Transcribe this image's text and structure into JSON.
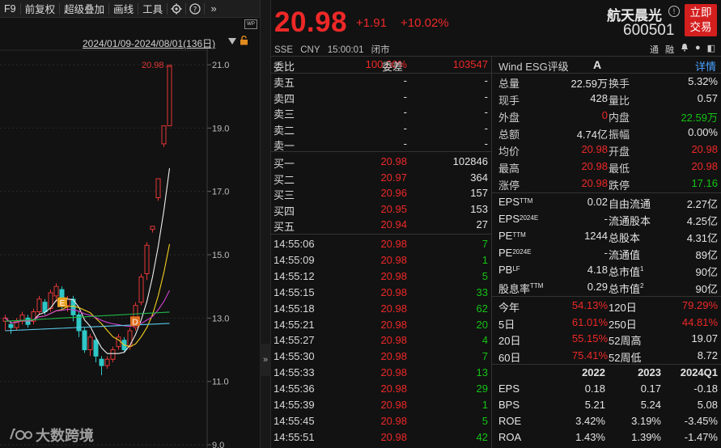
{
  "toolbar": {
    "items": [
      "F9",
      "前复权",
      "超级叠加",
      "画线",
      "工具"
    ]
  },
  "chart_panel": {
    "date_range": "2024/01/09-2024/08/01(136日)",
    "wp_badge": "WP",
    "price_marker": "20.98→",
    "y_ticks": [
      "21.0",
      "19.0",
      "17.0",
      "15.0",
      "13.0",
      "11.0",
      "9.0"
    ],
    "markers": [
      "E",
      "D"
    ],
    "watermark": "大数跨境"
  },
  "chart_data": {
    "type": "candlestick",
    "y_ticks": [
      21.0,
      19.0,
      17.0,
      15.0,
      13.0,
      11.0,
      9.0
    ],
    "ylim": [
      9.0,
      21.5
    ],
    "last_price_label": "20.98",
    "candles_tail_close": [
      12.0,
      12.3,
      13.2,
      14.1,
      15.2,
      15.8,
      17.2,
      19.07,
      20.98
    ]
  },
  "quote": {
    "price": "20.98",
    "change": "+1.91",
    "change_pct": "+10.02%",
    "exchange": "SSE",
    "currency": "CNY",
    "time": "15:00:01",
    "status": "闭市",
    "name": "航天晨光",
    "code": "600501",
    "trade_button_line1": "立即",
    "trade_button_line2": "交易",
    "mini_icons": [
      "通",
      "融",
      "🔔",
      "●",
      "◧"
    ]
  },
  "orderbook": {
    "weibi_label": "委比",
    "weibi_value": "100.00%",
    "weicha_label": "委差",
    "weicha_value": "103547",
    "asks": [
      {
        "label": "卖五",
        "price": "-",
        "vol": "-"
      },
      {
        "label": "卖四",
        "price": "-",
        "vol": "-"
      },
      {
        "label": "卖三",
        "price": "-",
        "vol": "-"
      },
      {
        "label": "卖二",
        "price": "-",
        "vol": "-"
      },
      {
        "label": "卖一",
        "price": "-",
        "vol": "-"
      }
    ],
    "bids": [
      {
        "label": "买一",
        "price": "20.98",
        "vol": "102846"
      },
      {
        "label": "买二",
        "price": "20.97",
        "vol": "364"
      },
      {
        "label": "买三",
        "price": "20.96",
        "vol": "157"
      },
      {
        "label": "买四",
        "price": "20.95",
        "vol": "153"
      },
      {
        "label": "买五",
        "price": "20.94",
        "vol": "27"
      }
    ],
    "ticks": [
      {
        "time": "14:55:06",
        "price": "20.98",
        "vol": "7"
      },
      {
        "time": "14:55:09",
        "price": "20.98",
        "vol": "1"
      },
      {
        "time": "14:55:12",
        "price": "20.98",
        "vol": "5"
      },
      {
        "time": "14:55:15",
        "price": "20.98",
        "vol": "33"
      },
      {
        "time": "14:55:18",
        "price": "20.98",
        "vol": "62"
      },
      {
        "time": "14:55:21",
        "price": "20.98",
        "vol": "20"
      },
      {
        "time": "14:55:27",
        "price": "20.98",
        "vol": "4"
      },
      {
        "time": "14:55:30",
        "price": "20.98",
        "vol": "7"
      },
      {
        "time": "14:55:33",
        "price": "20.98",
        "vol": "13"
      },
      {
        "time": "14:55:36",
        "price": "20.98",
        "vol": "29"
      },
      {
        "time": "14:55:39",
        "price": "20.98",
        "vol": "1"
      },
      {
        "time": "14:55:45",
        "price": "20.98",
        "vol": "5"
      },
      {
        "time": "14:55:51",
        "price": "20.98",
        "vol": "42"
      }
    ]
  },
  "stats": {
    "esg_label": "Wind ESG评级",
    "esg_value": "A",
    "detail_link": "详情",
    "rows1": [
      {
        "l1": "总量",
        "v1": "22.59万",
        "l2": "换手",
        "v2": "5.32%",
        "c1": "white",
        "c2": "white"
      },
      {
        "l1": "现手",
        "v1": "428",
        "l2": "量比",
        "v2": "0.57",
        "c1": "white",
        "c2": "white"
      },
      {
        "l1": "外盘",
        "v1": "0",
        "l2": "内盘",
        "v2": "22.59万",
        "c1": "red",
        "c2": "green"
      },
      {
        "l1": "总额",
        "v1": "4.74亿",
        "l2": "振幅",
        "v2": "0.00%",
        "c1": "white",
        "c2": "white"
      },
      {
        "l1": "均价",
        "v1": "20.98",
        "l2": "开盘",
        "v2": "20.98",
        "c1": "red",
        "c2": "red"
      },
      {
        "l1": "最高",
        "v1": "20.98",
        "l2": "最低",
        "v2": "20.98",
        "c1": "red",
        "c2": "red"
      },
      {
        "l1": "涨停",
        "v1": "20.98",
        "l2": "跌停",
        "v2": "17.16",
        "c1": "red",
        "c2": "green"
      }
    ],
    "rows2": [
      {
        "l1": "EPS",
        "s1": "TTM",
        "v1": "0.02",
        "l2": "自由流通",
        "s2": "",
        "v2": "2.27亿"
      },
      {
        "l1": "EPS",
        "s1": "2024E",
        "v1": "-",
        "l2": "流通股本",
        "s2": "",
        "v2": "4.25亿"
      },
      {
        "l1": "PE",
        "s1": "TTM",
        "v1": "1244",
        "l2": "总股本",
        "s2": "",
        "v2": "4.31亿"
      },
      {
        "l1": "PE",
        "s1": "2024E",
        "v1": "-",
        "l2": "流通值",
        "s2": "",
        "v2": "89亿"
      },
      {
        "l1": "PB",
        "s1": "LF",
        "v1": "4.18",
        "l2": "总市值",
        "s2": "1",
        "v2": "90亿"
      },
      {
        "l1": "股息率",
        "s1": "TTM",
        "v1": "0.29",
        "l2": "总市值",
        "s2": "2",
        "v2": "90亿"
      }
    ],
    "rows3": [
      {
        "l1": "今年",
        "v1": "54.13%",
        "l2": "120日",
        "v2": "79.29%",
        "c1": "red",
        "c2": "red"
      },
      {
        "l1": "5日",
        "v1": "61.01%",
        "l2": "250日",
        "v2": "44.81%",
        "c1": "red",
        "c2": "red"
      },
      {
        "l1": "20日",
        "v1": "55.15%",
        "l2": "52周高",
        "v2": "19.07",
        "c1": "red",
        "c2": "white"
      },
      {
        "l1": "60日",
        "v1": "75.41%",
        "l2": "52周低",
        "v2": "8.72",
        "c1": "red",
        "c2": "white"
      }
    ],
    "fin_header": [
      "",
      "2022",
      "2023",
      "2024Q1"
    ],
    "fin_rows": [
      {
        "label": "EPS",
        "vals": [
          "0.18",
          "0.17",
          "-0.18"
        ]
      },
      {
        "label": "BPS",
        "vals": [
          "5.21",
          "5.24",
          "5.08"
        ]
      },
      {
        "label": "ROE",
        "vals": [
          "3.42%",
          "3.19%",
          "-3.45%"
        ]
      },
      {
        "label": "ROA",
        "vals": [
          "1.43%",
          "1.39%",
          "-1.47%"
        ]
      }
    ]
  }
}
